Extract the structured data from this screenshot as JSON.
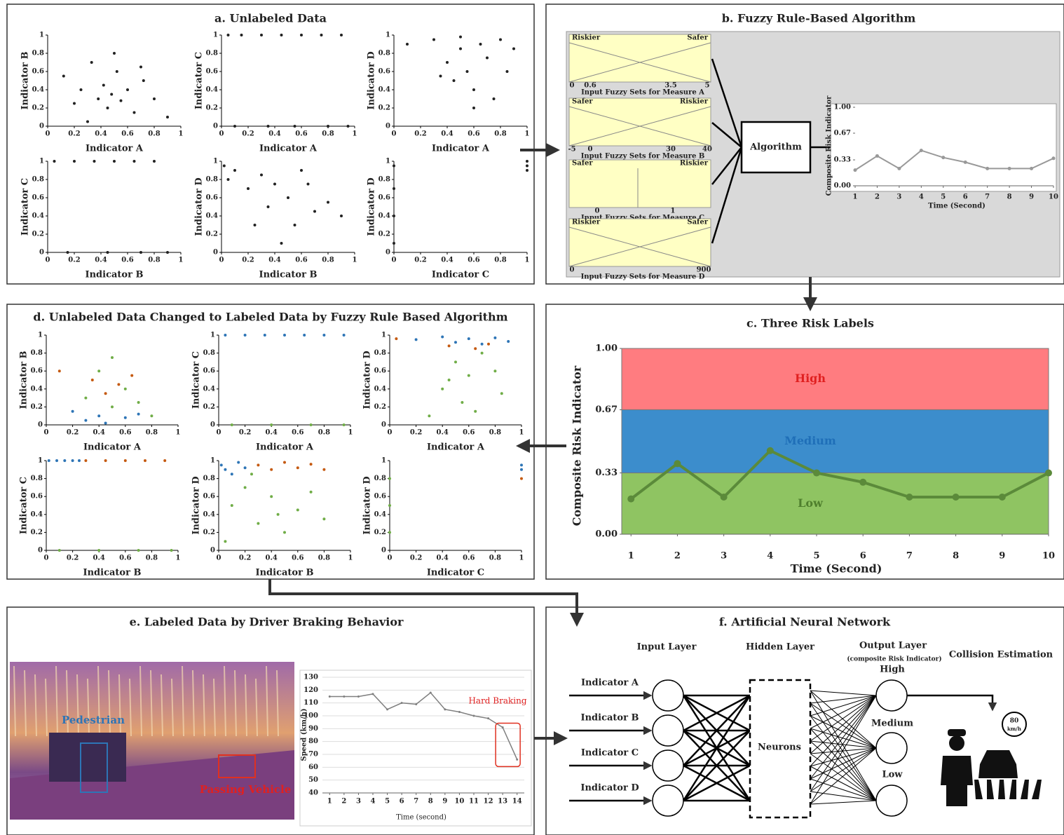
{
  "panel_a": {
    "title": "a. Unlabeled Data",
    "xlim": [
      0,
      1
    ],
    "ylim": [
      0,
      1
    ],
    "xticks": [
      0,
      0.2,
      0.4,
      0.6,
      0.8,
      1
    ],
    "yticks": [
      0,
      0.2,
      0.4,
      0.6,
      0.8,
      1
    ],
    "plots": [
      {
        "xlabel": "Indicator A",
        "ylabel": "Indicator B",
        "series": [
          {
            "color": "#222222",
            "x": [
              0.12,
              0.25,
              0.33,
              0.38,
              0.42,
              0.45,
              0.48,
              0.52,
              0.55,
              0.6,
              0.65,
              0.72,
              0.8,
              0.9,
              0.3,
              0.5,
              0.7,
              0.2
            ],
            "y": [
              0.55,
              0.4,
              0.7,
              0.3,
              0.45,
              0.2,
              0.35,
              0.6,
              0.28,
              0.4,
              0.15,
              0.5,
              0.3,
              0.1,
              0.05,
              0.8,
              0.65,
              0.25
            ]
          }
        ]
      },
      {
        "xlabel": "Indicator A",
        "ylabel": "Indicator C",
        "series": [
          {
            "color": "#222222",
            "x": [
              0.05,
              0.15,
              0.3,
              0.45,
              0.6,
              0.75,
              0.9,
              0.1,
              0.35,
              0.55,
              0.8,
              0.95
            ],
            "y": [
              1,
              1,
              1,
              1,
              1,
              1,
              1,
              0,
              0,
              0,
              0,
              0
            ]
          }
        ]
      },
      {
        "xlabel": "Indicator A",
        "ylabel": "Indicator D",
        "series": [
          {
            "color": "#222222",
            "x": [
              0.1,
              0.3,
              0.4,
              0.45,
              0.5,
              0.55,
              0.6,
              0.65,
              0.7,
              0.75,
              0.8,
              0.85,
              0.9,
              0.6,
              0.5,
              0.35
            ],
            "y": [
              0.9,
              0.95,
              0.7,
              0.5,
              0.85,
              0.6,
              0.4,
              0.9,
              0.75,
              0.3,
              0.95,
              0.6,
              0.85,
              0.2,
              0.98,
              0.55
            ]
          }
        ]
      },
      {
        "xlabel": "Indicator B",
        "ylabel": "Indicator C",
        "series": [
          {
            "color": "#222222",
            "x": [
              0.05,
              0.2,
              0.35,
              0.5,
              0.65,
              0.8,
              0.15,
              0.45,
              0.7,
              0.9
            ],
            "y": [
              1,
              1,
              1,
              1,
              1,
              1,
              0,
              0,
              0,
              0
            ]
          }
        ]
      },
      {
        "xlabel": "Indicator B",
        "ylabel": "Indicator D",
        "series": [
          {
            "color": "#222222",
            "x": [
              0.02,
              0.05,
              0.1,
              0.2,
              0.3,
              0.35,
              0.4,
              0.5,
              0.55,
              0.6,
              0.7,
              0.8,
              0.9,
              0.25,
              0.45,
              0.65
            ],
            "y": [
              0.95,
              0.8,
              0.9,
              0.7,
              0.85,
              0.5,
              0.75,
              0.6,
              0.3,
              0.9,
              0.45,
              0.55,
              0.4,
              0.3,
              0.1,
              0.75
            ]
          }
        ]
      },
      {
        "xlabel": "Indicator C",
        "ylabel": "Indicator D",
        "series": [
          {
            "color": "#222222",
            "x": [
              0,
              0,
              0,
              0,
              1,
              1,
              1
            ],
            "y": [
              0.1,
              0.4,
              0.7,
              0.95,
              0.9,
              0.95,
              1
            ]
          }
        ]
      }
    ]
  },
  "panel_b": {
    "title": "b. Fuzzy Rule-Based Algorithm",
    "algorithm": "Algorithm",
    "fuzzy_sets": [
      {
        "left": "Riskier",
        "right": "Safer",
        "ticks": [
          "0",
          "0.6",
          "3.5",
          "5"
        ],
        "caption": "Input Fuzzy Sets for Measure A"
      },
      {
        "left": "Safer",
        "right": "Riskier",
        "ticks": [
          "-5",
          "0",
          "30",
          "40"
        ],
        "caption": "Input Fuzzy Sets for Measure B"
      },
      {
        "left": "Safer",
        "right": "Riskier",
        "ticks": [
          "0",
          "1"
        ],
        "caption": "Input Fuzzy Sets for Measure C"
      },
      {
        "left": "Riskier",
        "right": "Safer",
        "ticks": [
          "0",
          "900"
        ],
        "caption": "Input Fuzzy Sets for Measure D"
      }
    ],
    "chart": {
      "ylabel": "Composite Risk Indicator",
      "xlabel": "Time (Second)",
      "color": "#999999",
      "x": [
        1,
        2,
        3,
        4,
        5,
        6,
        7,
        8,
        9,
        10
      ],
      "values": [
        0.2,
        0.38,
        0.22,
        0.45,
        0.36,
        0.3,
        0.22,
        0.22,
        0.22,
        0.35
      ],
      "xlim": [
        1,
        10
      ],
      "ylim": [
        0,
        1
      ],
      "xticks": [
        1,
        2,
        3,
        4,
        5,
        6,
        7,
        8,
        9,
        10
      ],
      "yticks": [
        {
          "value": 0,
          "label": "0.00"
        },
        {
          "value": 0.33,
          "label": "0.33"
        },
        {
          "value": 0.67,
          "label": "0.67"
        },
        {
          "value": 1,
          "label": "1.00"
        }
      ]
    }
  },
  "panel_c": {
    "title": "c. Three Risk Labels",
    "ylabel": "Composite Risk Indicator",
    "xlabel": "Time (Second)",
    "color": "#5b8a3a",
    "bands": [
      {
        "name": "High",
        "from": 0.67,
        "to": 1,
        "color": "#ff7c80",
        "text_color": "#e02020"
      },
      {
        "name": "Medium",
        "from": 0.33,
        "to": 0.67,
        "color": "#3c8dcc",
        "text_color": "#1f6fb8"
      },
      {
        "name": "Low",
        "from": 0,
        "to": 0.33,
        "color": "#8fc462",
        "text_color": "#4f7f2d"
      }
    ],
    "x": [
      1,
      2,
      3,
      4,
      5,
      6,
      7,
      8,
      9,
      10
    ],
    "values": [
      0.19,
      0.38,
      0.2,
      0.45,
      0.33,
      0.28,
      0.2,
      0.2,
      0.2,
      0.33
    ],
    "xlim": [
      0.8,
      10
    ],
    "ylim": [
      0,
      1
    ],
    "xticks": [
      1,
      2,
      3,
      4,
      5,
      6,
      7,
      8,
      9,
      10
    ],
    "yticks": [
      {
        "value": 0,
        "label": "0.00"
      },
      {
        "value": 0.33,
        "label": "0.33"
      },
      {
        "value": 0.67,
        "label": "0.67"
      },
      {
        "value": 1,
        "label": "1.00"
      }
    ]
  },
  "panel_d": {
    "title": "d. Unlabeled Data Changed to Labeled Data by Fuzzy Rule Based Algorithm",
    "xlim": [
      0,
      1
    ],
    "ylim": [
      0,
      1
    ],
    "xticks": [
      0,
      0.2,
      0.4,
      0.6,
      0.8,
      1
    ],
    "yticks": [
      0,
      0.2,
      0.4,
      0.6,
      0.8,
      1
    ],
    "plots": [
      {
        "xlabel": "Indicator A",
        "ylabel": "Indicator B",
        "series": [
          {
            "color": "#2e75b6",
            "x": [
              0.2,
              0.3,
              0.4,
              0.45,
              0.6,
              0.7
            ],
            "y": [
              0.15,
              0.05,
              0.1,
              0.02,
              0.08,
              0.12
            ]
          },
          {
            "color": "#c55a11",
            "x": [
              0.35,
              0.45,
              0.55,
              0.65,
              0.1
            ],
            "y": [
              0.5,
              0.35,
              0.45,
              0.55,
              0.6
            ]
          },
          {
            "color": "#70ad47",
            "x": [
              0.3,
              0.4,
              0.5,
              0.6,
              0.7,
              0.5,
              0.8
            ],
            "y": [
              0.3,
              0.6,
              0.2,
              0.4,
              0.25,
              0.75,
              0.1
            ]
          }
        ]
      },
      {
        "xlabel": "Indicator A",
        "ylabel": "Indicator C",
        "series": [
          {
            "color": "#2e75b6",
            "x": [
              0.05,
              0.2,
              0.35,
              0.5,
              0.65,
              0.8,
              0.95
            ],
            "y": [
              1,
              1,
              1,
              1,
              1,
              1,
              1
            ]
          },
          {
            "color": "#70ad47",
            "x": [
              0.1,
              0.4,
              0.7,
              0.95
            ],
            "y": [
              0,
              0,
              0,
              0
            ]
          }
        ]
      },
      {
        "xlabel": "Indicator A",
        "ylabel": "Indicator D",
        "series": [
          {
            "color": "#2e75b6",
            "x": [
              0.2,
              0.4,
              0.5,
              0.6,
              0.7,
              0.8,
              0.9
            ],
            "y": [
              0.95,
              0.98,
              0.92,
              0.96,
              0.9,
              0.97,
              0.93
            ]
          },
          {
            "color": "#c55a11",
            "x": [
              0.05,
              0.45,
              0.65,
              0.75
            ],
            "y": [
              0.96,
              0.88,
              0.85,
              0.9
            ]
          },
          {
            "color": "#70ad47",
            "x": [
              0.3,
              0.4,
              0.5,
              0.55,
              0.6,
              0.7,
              0.8,
              0.85,
              0.65,
              0.45
            ],
            "y": [
              0.1,
              0.4,
              0.7,
              0.25,
              0.55,
              0.8,
              0.6,
              0.35,
              0.15,
              0.5
            ]
          }
        ]
      },
      {
        "xlabel": "Indicator B",
        "ylabel": "Indicator C",
        "series": [
          {
            "color": "#2e75b6",
            "x": [
              0.02,
              0.08,
              0.14,
              0.2,
              0.25
            ],
            "y": [
              1,
              1,
              1,
              1,
              1
            ]
          },
          {
            "color": "#c55a11",
            "x": [
              0.3,
              0.45,
              0.6,
              0.75,
              0.9
            ],
            "y": [
              1,
              1,
              1,
              1,
              1
            ]
          },
          {
            "color": "#70ad47",
            "x": [
              0.1,
              0.4,
              0.7,
              0.95
            ],
            "y": [
              0,
              0,
              0,
              0
            ]
          }
        ]
      },
      {
        "xlabel": "Indicator B",
        "ylabel": "Indicator D",
        "series": [
          {
            "color": "#2e75b6",
            "x": [
              0.02,
              0.05,
              0.1,
              0.15,
              0.2
            ],
            "y": [
              0.95,
              0.9,
              0.85,
              0.98,
              0.92
            ]
          },
          {
            "color": "#c55a11",
            "x": [
              0.3,
              0.4,
              0.5,
              0.6,
              0.7,
              0.8
            ],
            "y": [
              0.95,
              0.9,
              0.98,
              0.92,
              0.96,
              0.9
            ]
          },
          {
            "color": "#70ad47",
            "x": [
              0.05,
              0.1,
              0.2,
              0.3,
              0.4,
              0.5,
              0.6,
              0.7,
              0.8,
              0.25,
              0.45
            ],
            "y": [
              0.1,
              0.5,
              0.7,
              0.3,
              0.6,
              0.2,
              0.45,
              0.65,
              0.35,
              0.85,
              0.4
            ]
          }
        ]
      },
      {
        "xlabel": "Indicator C",
        "ylabel": "Indicator D",
        "series": [
          {
            "color": "#2e75b6",
            "x": [
              1,
              1
            ],
            "y": [
              0.95,
              0.9
            ]
          },
          {
            "color": "#c55a11",
            "x": [
              1
            ],
            "y": [
              0.8
            ]
          },
          {
            "color": "#70ad47",
            "x": [
              0,
              0,
              0
            ],
            "y": [
              0.2,
              0.5,
              0.8
            ]
          }
        ]
      }
    ]
  },
  "panel_e": {
    "title": "e. Labeled Data by Driver Braking Behavior",
    "pedestrian": "Pedestrian",
    "vehicle": "Passing Vehicle",
    "chart": {
      "ylabel": "Speed (km/h)",
      "xlabel": "Time (second)",
      "annotation": "Hard Braking",
      "color": "#7f7f7f",
      "x": [
        1,
        2,
        3,
        4,
        5,
        6,
        7,
        8,
        9,
        10,
        11,
        12,
        13,
        14
      ],
      "values": [
        115,
        115,
        115,
        117,
        105,
        110,
        109,
        118,
        105,
        103,
        100,
        98,
        91,
        66
      ],
      "xlim": [
        0.5,
        14.5
      ],
      "ylim": [
        40,
        130
      ],
      "xticks": [
        1,
        2,
        3,
        4,
        5,
        6,
        7,
        8,
        9,
        10,
        11,
        12,
        13,
        14
      ],
      "yticks": [
        40,
        50,
        60,
        70,
        80,
        90,
        100,
        110,
        120,
        130
      ]
    }
  },
  "panel_f": {
    "title": "f. Artificial Neural Network",
    "input_layer": "Input Layer",
    "hidden_layer": "Hidden Layer",
    "output_layer": "Output Layer",
    "output_note": "(composite Risk Indicator)",
    "collision": "Collision Estimation",
    "inputs": [
      "Indicator A",
      "Indicator B",
      "Indicator C",
      "Indicator D"
    ],
    "neurons": "Neurons",
    "outputs": [
      "High",
      "Medium",
      "Low"
    ],
    "sign_speed": "80",
    "sign_unit": "km/h"
  }
}
